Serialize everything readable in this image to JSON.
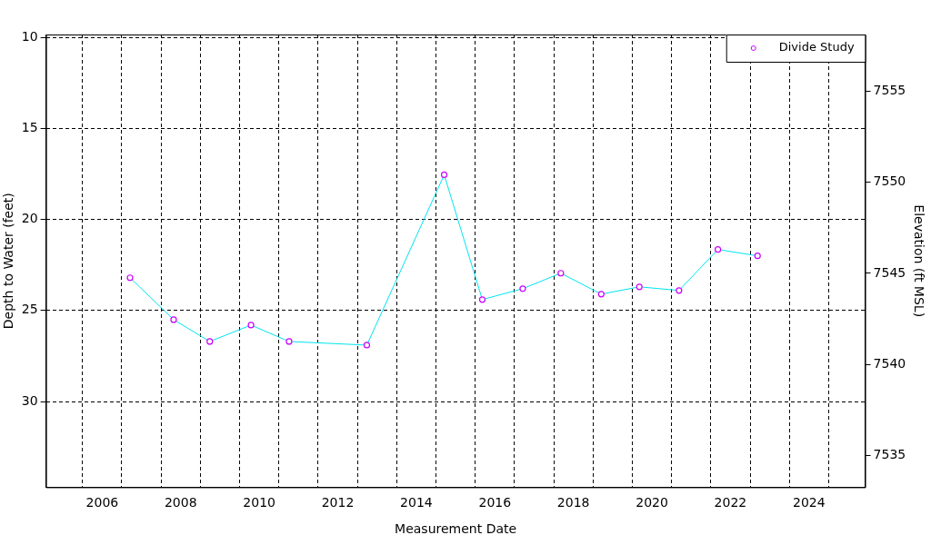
{
  "chart_data": {
    "type": "line",
    "xlabel": "Measurement Date",
    "ylabel": "Depth to Water (feet)",
    "y2label": "Elevation (ft MSL)",
    "x": [
      2006.71,
      2007.82,
      2008.74,
      2009.79,
      2010.76,
      2012.74,
      2014.71,
      2015.68,
      2016.71,
      2017.68,
      2018.71,
      2019.68,
      2020.69,
      2021.68,
      2022.69
    ],
    "series": [
      {
        "name": "Divide Study",
        "color": "#00e5ee",
        "colors": [
          "#cc00ff",
          "#cc00ff",
          "#cc00ff",
          "#cc00ff",
          "#cc00ff",
          "#cc00ff",
          "#cc00ff",
          "#cc00ff",
          "#cc00ff",
          "#cc00ff",
          "#cc00ff",
          "#cc00ff",
          "#cc00ff",
          "#cc00ff",
          "#cc00ff"
        ],
        "values": [
          23.2,
          25.5,
          26.7,
          25.8,
          26.7,
          26.9,
          17.55,
          24.4,
          23.8,
          22.95,
          24.1,
          23.7,
          23.9,
          21.65,
          22.0
        ]
      }
    ],
    "xlim": [
      2004.57,
      2025.43
    ],
    "xticks": [
      {
        "value": 2005.5,
        "label": null
      },
      2006,
      {
        "value": 2006.5,
        "label": null
      },
      {
        "value": 2007.5,
        "label": null
      },
      2008,
      {
        "value": 2008.5,
        "label": null
      },
      {
        "value": 2009.5,
        "label": null
      },
      2010,
      {
        "value": 2010.5,
        "label": null
      },
      {
        "value": 2011.5,
        "label": null
      },
      2012,
      {
        "value": 2012.5,
        "label": null
      },
      {
        "value": 2013.5,
        "label": null
      },
      2014,
      {
        "value": 2014.5,
        "label": null
      },
      {
        "value": 2015.5,
        "label": null
      },
      2016,
      {
        "value": 2016.5,
        "label": null
      },
      {
        "value": 2017.5,
        "label": null
      },
      2018,
      {
        "value": 2018.5,
        "label": null
      },
      {
        "value": 2019.5,
        "label": null
      },
      2020,
      {
        "value": 2020.5,
        "label": null
      },
      {
        "value": 2021.5,
        "label": null
      },
      2022,
      {
        "value": 2022.5,
        "label": null
      },
      {
        "value": 2023.5,
        "label": null
      },
      2024,
      {
        "value": 2024.5,
        "label": null
      }
    ],
    "ylim": [
      34.7,
      9.85
    ],
    "yticks": [
      10,
      15,
      20,
      25,
      30
    ],
    "y2lim": [
      7533.26,
      7558.11
    ],
    "y2ticks": [
      7535,
      7540,
      7545,
      7550,
      7555
    ],
    "grid": true,
    "legend": "top right",
    "marker": "circle"
  }
}
